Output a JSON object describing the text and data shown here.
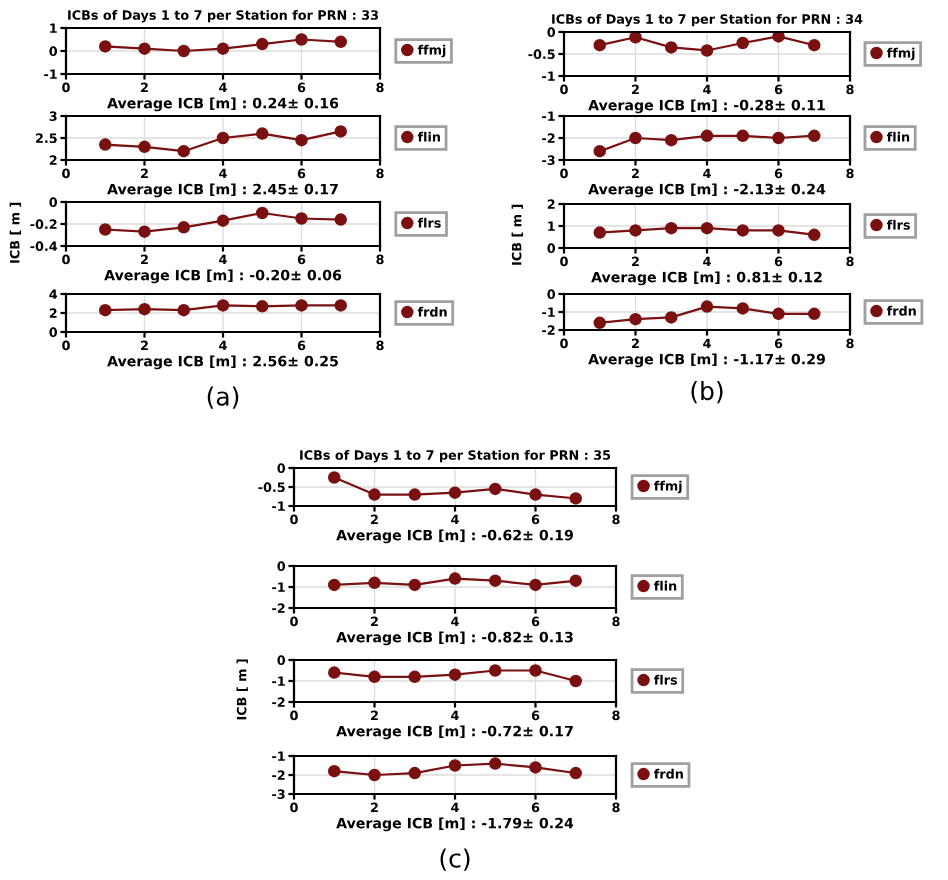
{
  "chart_data": [
    {
      "type": "line",
      "title": "ICBs of Days 1 to 7 per Station for PRN : 33",
      "xlabel": "Average ICB [m] : 0.24± 0.16",
      "x": [
        1,
        2,
        3,
        4,
        5,
        6,
        7
      ],
      "series": [
        {
          "name": "ffmj",
          "color": "#7a1010",
          "values": [
            0.2,
            0.1,
            0.0,
            0.1,
            0.3,
            0.5,
            0.4
          ],
          "errors": [
            0.1,
            0.1,
            0.1,
            0.1,
            0.1,
            0.1,
            0.1
          ]
        }
      ],
      "xlim": [
        0,
        8
      ],
      "xticks": [
        0,
        2,
        4,
        6,
        8
      ],
      "ylim": [
        -1,
        1
      ],
      "yticks": [
        -1,
        0,
        1
      ],
      "grid": true,
      "legend": "right",
      "marker": "circle",
      "line_style": "solid"
    },
    {
      "type": "line",
      "xlabel": "Average ICB [m] : 2.45± 0.17",
      "x": [
        1,
        2,
        3,
        4,
        5,
        6,
        7
      ],
      "series": [
        {
          "name": "flin",
          "color": "#7a1010",
          "values": [
            2.35,
            2.3,
            2.2,
            2.5,
            2.6,
            2.45,
            2.65
          ],
          "errors": [
            0.08,
            0.08,
            0.06,
            0.08,
            0.08,
            0.08,
            0.08
          ]
        }
      ],
      "xlim": [
        0,
        8
      ],
      "xticks": [
        0,
        2,
        4,
        6,
        8
      ],
      "ylim": [
        2,
        3
      ],
      "yticks": [
        2,
        2.5,
        3
      ],
      "grid": true,
      "legend": "right",
      "marker": "circle",
      "line_style": "solid"
    },
    {
      "type": "line",
      "ylabel": "ICB [ m ]",
      "xlabel": "Average ICB [m] : -0.20± 0.06",
      "x": [
        1,
        2,
        3,
        4,
        5,
        6,
        7
      ],
      "series": [
        {
          "name": "flrs",
          "color": "#7a1010",
          "values": [
            -0.25,
            -0.27,
            -0.23,
            -0.17,
            -0.1,
            -0.15,
            -0.16
          ],
          "errors": [
            0.03,
            0.03,
            0.03,
            0.03,
            0.03,
            0.03,
            0.03
          ]
        }
      ],
      "xlim": [
        0,
        8
      ],
      "xticks": [
        0,
        2,
        4,
        6,
        8
      ],
      "ylim": [
        -0.4,
        0
      ],
      "yticks": [
        -0.4,
        -0.2,
        0
      ],
      "grid": true,
      "legend": "right",
      "marker": "circle",
      "line_style": "solid"
    },
    {
      "type": "line",
      "xlabel": "Average ICB [m] : 2.56± 0.25",
      "annotations": [
        "(a)"
      ],
      "x": [
        1,
        2,
        3,
        4,
        5,
        6,
        7
      ],
      "series": [
        {
          "name": "frdn",
          "color": "#7a1010",
          "values": [
            2.3,
            2.4,
            2.3,
            2.8,
            2.7,
            2.8,
            2.8
          ],
          "errors": [
            0.2,
            0.2,
            0.2,
            0.2,
            0.2,
            0.2,
            0.2
          ]
        }
      ],
      "xlim": [
        0,
        8
      ],
      "xticks": [
        0,
        2,
        4,
        6,
        8
      ],
      "ylim": [
        0,
        4
      ],
      "yticks": [
        0,
        2,
        4
      ],
      "grid": true,
      "legend": "right",
      "marker": "circle",
      "line_style": "solid"
    },
    {
      "type": "line",
      "title": "ICBs of Days 1 to 7 per Station for PRN : 34",
      "xlabel": "Average ICB [m] : -0.28± 0.11",
      "x": [
        1,
        2,
        3,
        4,
        5,
        6,
        7
      ],
      "series": [
        {
          "name": "ffmj",
          "color": "#7a1010",
          "values": [
            -0.3,
            -0.12,
            -0.35,
            -0.42,
            -0.25,
            -0.1,
            -0.3
          ],
          "errors": [
            0.05,
            0.05,
            0.05,
            0.05,
            0.05,
            0.05,
            0.05
          ]
        }
      ],
      "xlim": [
        0,
        8
      ],
      "xticks": [
        0,
        2,
        4,
        6,
        8
      ],
      "ylim": [
        -1,
        0
      ],
      "yticks": [
        -1,
        -0.5,
        0
      ],
      "grid": true,
      "legend": "right",
      "marker": "circle",
      "line_style": "solid"
    },
    {
      "type": "line",
      "xlabel": "Average ICB [m] : -2.13± 0.24",
      "x": [
        1,
        2,
        3,
        4,
        5,
        6,
        7
      ],
      "series": [
        {
          "name": "flin",
          "color": "#7a1010",
          "values": [
            -2.6,
            -2.0,
            -2.1,
            -1.9,
            -1.9,
            -2.0,
            -1.9
          ],
          "errors": [
            0.1,
            0.1,
            0.1,
            0.1,
            0.1,
            0.1,
            0.1
          ]
        }
      ],
      "xlim": [
        0,
        8
      ],
      "xticks": [
        0,
        2,
        4,
        6,
        8
      ],
      "ylim": [
        -3,
        -1
      ],
      "yticks": [
        -3,
        -2,
        -1
      ],
      "grid": true,
      "legend": "right",
      "marker": "circle",
      "line_style": "solid"
    },
    {
      "type": "line",
      "ylabel": "ICB [ m ]",
      "xlabel": "Average ICB [m] : 0.81± 0.12",
      "x": [
        1,
        2,
        3,
        4,
        5,
        6,
        7
      ],
      "series": [
        {
          "name": "flrs",
          "color": "#7a1010",
          "values": [
            0.7,
            0.8,
            0.9,
            0.9,
            0.8,
            0.8,
            0.6
          ],
          "errors": [
            0.08,
            0.08,
            0.08,
            0.08,
            0.08,
            0.08,
            0.08
          ]
        }
      ],
      "xlim": [
        0,
        8
      ],
      "xticks": [
        0,
        2,
        4,
        6,
        8
      ],
      "ylim": [
        0,
        2
      ],
      "yticks": [
        0,
        1,
        2
      ],
      "grid": true,
      "legend": "right",
      "marker": "circle",
      "line_style": "solid"
    },
    {
      "type": "line",
      "xlabel": "Average ICB [m] : -1.17± 0.29",
      "annotations": [
        "(b)"
      ],
      "x": [
        1,
        2,
        3,
        4,
        5,
        6,
        7
      ],
      "series": [
        {
          "name": "frdn",
          "color": "#7a1010",
          "values": [
            -1.6,
            -1.4,
            -1.3,
            -0.7,
            -0.8,
            -1.1,
            -1.1
          ],
          "errors": [
            0.1,
            0.1,
            0.1,
            0.1,
            0.1,
            0.1,
            0.1
          ]
        }
      ],
      "xlim": [
        0,
        8
      ],
      "xticks": [
        0,
        2,
        4,
        6,
        8
      ],
      "ylim": [
        -2,
        0
      ],
      "yticks": [
        -2,
        -1,
        0
      ],
      "grid": true,
      "legend": "right",
      "marker": "circle",
      "line_style": "solid"
    },
    {
      "type": "line",
      "title": "ICBs of Days 1 to 7 per Station for PRN : 35",
      "xlabel": "Average ICB [m] : -0.62± 0.19",
      "x": [
        1,
        2,
        3,
        4,
        5,
        6,
        7
      ],
      "series": [
        {
          "name": "ffmj",
          "color": "#7a1010",
          "values": [
            -0.25,
            -0.7,
            -0.7,
            -0.65,
            -0.55,
            -0.7,
            -0.8
          ],
          "errors": [
            0.12,
            0.1,
            0.1,
            0.1,
            0.1,
            0.1,
            0.1
          ]
        }
      ],
      "xlim": [
        0,
        8
      ],
      "xticks": [
        0,
        2,
        4,
        6,
        8
      ],
      "ylim": [
        -1,
        0
      ],
      "yticks": [
        -1,
        -0.5,
        0
      ],
      "grid": true,
      "legend": "right",
      "marker": "circle",
      "line_style": "solid"
    },
    {
      "type": "line",
      "xlabel": "Average ICB [m] : -0.82± 0.13",
      "x": [
        1,
        2,
        3,
        4,
        5,
        6,
        7
      ],
      "series": [
        {
          "name": "flin",
          "color": "#7a1010",
          "values": [
            -0.9,
            -0.8,
            -0.9,
            -0.6,
            -0.7,
            -0.9,
            -0.7
          ],
          "errors": [
            0.1,
            0.1,
            0.1,
            0.1,
            0.1,
            0.1,
            0.1
          ]
        }
      ],
      "xlim": [
        0,
        8
      ],
      "xticks": [
        0,
        2,
        4,
        6,
        8
      ],
      "ylim": [
        -2,
        0
      ],
      "yticks": [
        -2,
        -1,
        0
      ],
      "grid": true,
      "legend": "right",
      "marker": "circle",
      "line_style": "solid"
    },
    {
      "type": "line",
      "ylabel": "ICB [ m ]",
      "xlabel": "Average ICB [m] : -0.72± 0.17",
      "x": [
        1,
        2,
        3,
        4,
        5,
        6,
        7
      ],
      "series": [
        {
          "name": "flrs",
          "color": "#7a1010",
          "values": [
            -0.6,
            -0.8,
            -0.8,
            -0.7,
            -0.5,
            -0.5,
            -1.0
          ],
          "errors": [
            0.1,
            0.1,
            0.1,
            0.1,
            0.1,
            0.1,
            0.1
          ]
        }
      ],
      "xlim": [
        0,
        8
      ],
      "xticks": [
        0,
        2,
        4,
        6,
        8
      ],
      "ylim": [
        -2,
        0
      ],
      "yticks": [
        -2,
        -1,
        0
      ],
      "grid": true,
      "legend": "right",
      "marker": "circle",
      "line_style": "solid"
    },
    {
      "type": "line",
      "xlabel": "Average ICB [m] : -1.79± 0.24",
      "annotations": [
        "(c)"
      ],
      "x": [
        1,
        2,
        3,
        4,
        5,
        6,
        7
      ],
      "series": [
        {
          "name": "frdn",
          "color": "#7a1010",
          "values": [
            -1.8,
            -2.0,
            -1.9,
            -1.5,
            -1.4,
            -1.6,
            -1.9
          ],
          "errors": [
            0.1,
            0.1,
            0.1,
            0.1,
            0.1,
            0.1,
            0.1
          ]
        }
      ],
      "xlim": [
        0,
        8
      ],
      "xticks": [
        0,
        2,
        4,
        6,
        8
      ],
      "ylim": [
        -3,
        -1
      ],
      "yticks": [
        -3,
        -2,
        -1
      ],
      "grid": true,
      "legend": "right",
      "marker": "circle",
      "line_style": "solid"
    }
  ]
}
